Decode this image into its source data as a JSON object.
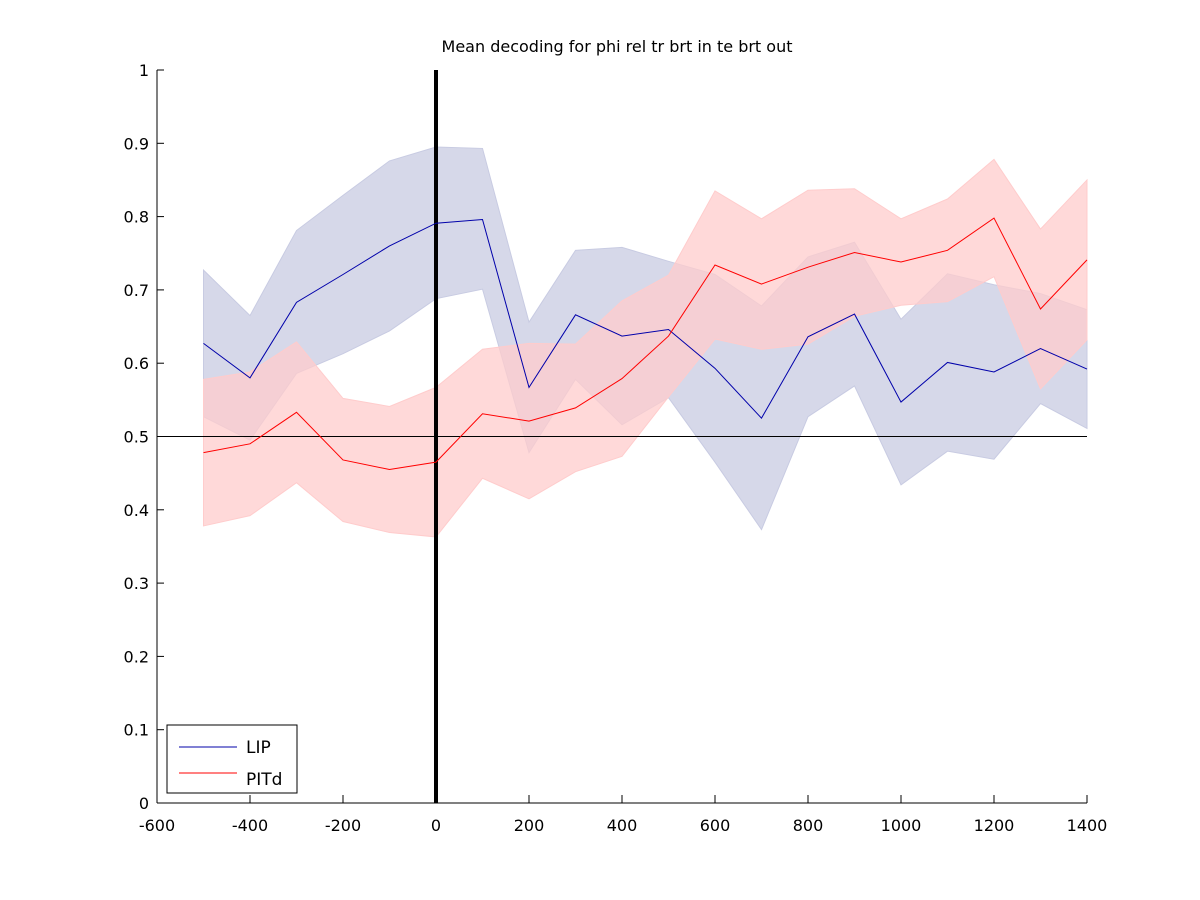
{
  "chart_data": {
    "type": "line",
    "title": "Mean decoding for phi rel tr brt in te brt out",
    "xlabel": "",
    "ylabel": "",
    "xlim": [
      -600,
      1400
    ],
    "ylim": [
      0,
      1
    ],
    "x_ticks": [
      "-600",
      "-400",
      "-200",
      "0",
      "200",
      "400",
      "600",
      "800",
      "1000",
      "1200",
      "1400"
    ],
    "y_ticks": [
      "0",
      "0.1",
      "0.2",
      "0.3",
      "0.4",
      "0.5",
      "0.6",
      "0.7",
      "0.8",
      "0.9",
      "1"
    ],
    "x": [
      -500,
      -400,
      -300,
      -200,
      -100,
      0,
      100,
      200,
      300,
      400,
      500,
      600,
      700,
      800,
      900,
      1000,
      1100,
      1200,
      1300,
      1400
    ],
    "series": [
      {
        "name": "LIP",
        "color": "#0000aa",
        "band_color": "#c8cbe2",
        "values": [
          0.627,
          0.58,
          0.683,
          0.721,
          0.76,
          0.791,
          0.796,
          0.567,
          0.666,
          0.637,
          0.646,
          0.593,
          0.525,
          0.636,
          0.667,
          0.547,
          0.601,
          0.588,
          0.62,
          0.592
        ],
        "upper": [
          0.727,
          0.665,
          0.781,
          0.829,
          0.876,
          0.895,
          0.893,
          0.656,
          0.754,
          0.758,
          0.739,
          0.721,
          0.678,
          0.745,
          0.765,
          0.66,
          0.722,
          0.707,
          0.695,
          0.673
        ],
        "lower": [
          0.527,
          0.495,
          0.586,
          0.613,
          0.644,
          0.688,
          0.701,
          0.478,
          0.578,
          0.516,
          0.553,
          0.465,
          0.373,
          0.527,
          0.569,
          0.434,
          0.48,
          0.469,
          0.545,
          0.511
        ]
      },
      {
        "name": "PITd",
        "color": "#ff0000",
        "band_color": "#ffcccc",
        "values": [
          0.478,
          0.49,
          0.533,
          0.468,
          0.455,
          0.465,
          0.531,
          0.521,
          0.539,
          0.579,
          0.637,
          0.734,
          0.708,
          0.731,
          0.751,
          0.738,
          0.754,
          0.798,
          0.674,
          0.741
        ],
        "upper": [
          0.578,
          0.588,
          0.629,
          0.552,
          0.541,
          0.567,
          0.619,
          0.627,
          0.626,
          0.685,
          0.72,
          0.835,
          0.797,
          0.836,
          0.838,
          0.797,
          0.824,
          0.878,
          0.783,
          0.85
        ],
        "lower": [
          0.378,
          0.392,
          0.437,
          0.384,
          0.369,
          0.363,
          0.443,
          0.415,
          0.452,
          0.473,
          0.554,
          0.633,
          0.619,
          0.626,
          0.664,
          0.679,
          0.684,
          0.718,
          0.565,
          0.632
        ]
      }
    ],
    "reference_lines": {
      "horizontal_y": 0.5,
      "vertical_x": 0
    },
    "grid": false,
    "legend_position": "bottom-left",
    "legend": [
      "LIP",
      "PITd"
    ]
  }
}
